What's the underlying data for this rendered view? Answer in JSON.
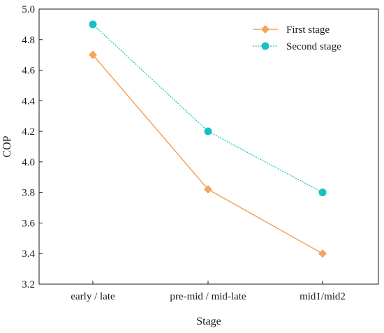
{
  "chart_data": {
    "type": "line",
    "categories": [
      "early / late",
      "pre-mid / mid-late",
      "mid1/mid2"
    ],
    "xlabel": "Stage",
    "ylabel": "COP",
    "ylim": [
      3.2,
      5.0
    ],
    "yticks": [
      3.2,
      3.4,
      3.6,
      3.8,
      4.0,
      4.2,
      4.4,
      4.6,
      4.8,
      5.0
    ],
    "grid": false,
    "legend_position": "top-right",
    "series": [
      {
        "name": "First stage",
        "values": [
          4.7,
          3.82,
          3.4
        ],
        "color": "#f5a35c",
        "marker": "diamond",
        "line_style": "solid"
      },
      {
        "name": "Second stage",
        "values": [
          4.9,
          4.2,
          3.8
        ],
        "color": "#1bbfc2",
        "marker": "circle",
        "line_style": "dotted"
      }
    ]
  }
}
